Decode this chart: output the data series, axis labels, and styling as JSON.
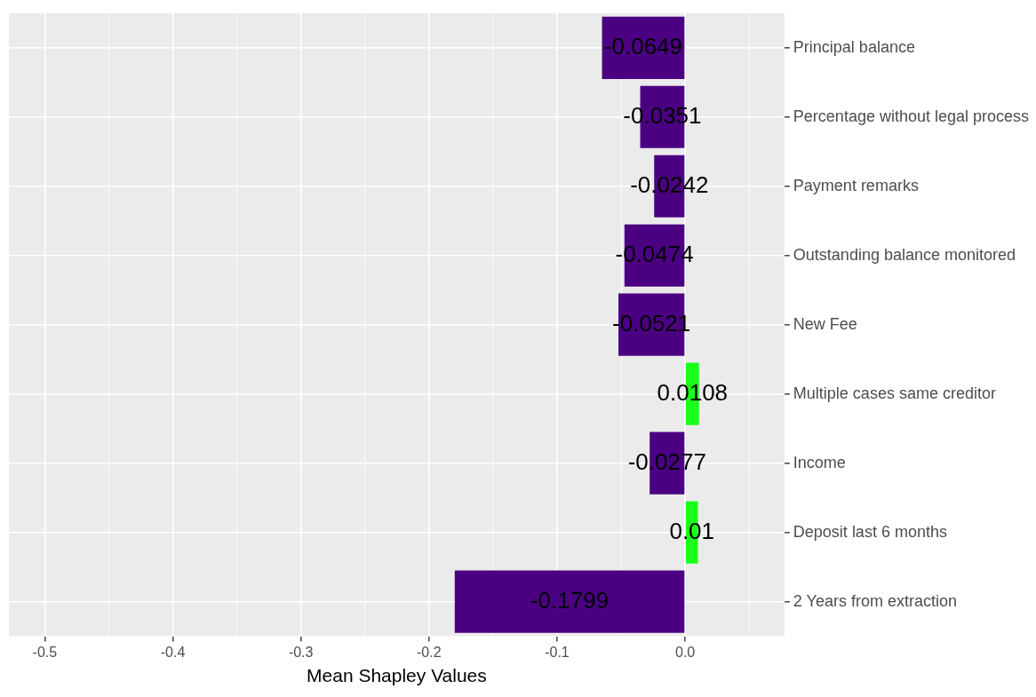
{
  "chart_data": {
    "type": "bar",
    "orientation": "horizontal",
    "xlabel": "Mean Shapley Values",
    "categories": [
      "Principal balance",
      "Percentage without legal process",
      "Payment remarks",
      "Outstanding balance monitored",
      "New Fee",
      "Multiple cases same creditor",
      "Income",
      "Deposit last 6 months",
      "2 Years from extraction"
    ],
    "values": [
      -0.0649,
      -0.0351,
      -0.0242,
      -0.0474,
      -0.0521,
      0.0108,
      -0.0277,
      0.01,
      -0.1799
    ],
    "colors": [
      "#4b0082",
      "#4b0082",
      "#4b0082",
      "#4b0082",
      "#4b0082",
      "#1aff1a",
      "#4b0082",
      "#1aff1a",
      "#4b0082"
    ],
    "xlim": [
      -0.528,
      0.0775
    ],
    "xticks": [
      {
        "value": -0.5,
        "label": "-0.5"
      },
      {
        "value": -0.45,
        "label": null
      },
      {
        "value": -0.4,
        "label": "-0.4"
      },
      {
        "value": -0.35,
        "label": null
      },
      {
        "value": -0.3,
        "label": "-0.3"
      },
      {
        "value": -0.25,
        "label": null
      },
      {
        "value": -0.2,
        "label": "-0.2"
      },
      {
        "value": -0.15,
        "label": null
      },
      {
        "value": -0.1,
        "label": "-0.1"
      },
      {
        "value": -0.05,
        "label": null
      },
      {
        "value": 0,
        "label": "0.0"
      },
      {
        "value": 0.05,
        "label": null
      }
    ],
    "data_labels": true,
    "grid": true,
    "legend": false
  }
}
